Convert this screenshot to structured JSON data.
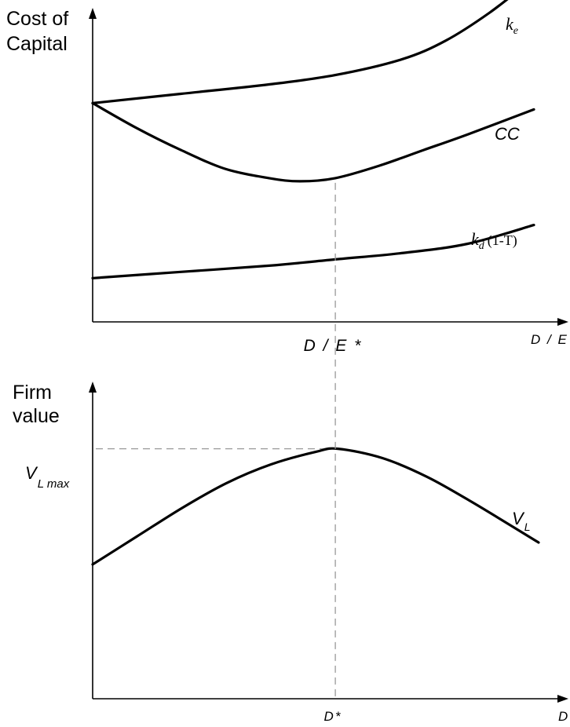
{
  "chart_data": [
    {
      "type": "line",
      "title": "",
      "ylabel_line1": "Cost of",
      "ylabel_line2": "Capital",
      "xlabel": "D / E",
      "xlim": [
        0,
        1
      ],
      "ylim": [
        0,
        1
      ],
      "marker_tick": {
        "x": 0.55,
        "label": "D / E *"
      },
      "series": [
        {
          "name": "ke",
          "label_main": "k",
          "label_sub": "e",
          "x": [
            0,
            0.2,
            0.4,
            0.55,
            0.7,
            0.8,
            0.9,
            1.0
          ],
          "y": [
            0.7,
            0.73,
            0.76,
            0.79,
            0.84,
            0.9,
            0.99,
            1.1
          ]
        },
        {
          "name": "CC",
          "label_main": "CC",
          "x": [
            0,
            0.1,
            0.2,
            0.3,
            0.4,
            0.47,
            0.55,
            0.65,
            0.75,
            0.85,
            1.0
          ],
          "y": [
            0.7,
            0.62,
            0.55,
            0.49,
            0.46,
            0.45,
            0.46,
            0.5,
            0.55,
            0.6,
            0.68
          ]
        },
        {
          "name": "kd(1-T)",
          "label_main": "k",
          "label_sub": "d",
          "label_suffix": "(1-T)",
          "x": [
            0,
            0.2,
            0.4,
            0.55,
            0.7,
            0.85,
            1.0
          ],
          "y": [
            0.14,
            0.16,
            0.18,
            0.2,
            0.22,
            0.25,
            0.31
          ]
        }
      ]
    },
    {
      "type": "line",
      "title": "",
      "ylabel_line1": "Firm",
      "ylabel_line2": "value",
      "xlabel": "D",
      "xlim": [
        0,
        1
      ],
      "ylim": [
        0,
        1
      ],
      "marker_tick": {
        "x": 0.55,
        "label": "D*"
      },
      "max_label": {
        "main": "V",
        "sub": "L max",
        "y": 0.8
      },
      "series": [
        {
          "name": "VL",
          "label_main": "V",
          "label_sub": "L",
          "x": [
            0,
            0.1,
            0.2,
            0.3,
            0.4,
            0.5,
            0.55,
            0.65,
            0.75,
            0.85,
            1.0
          ],
          "y": [
            0.43,
            0.52,
            0.61,
            0.69,
            0.75,
            0.79,
            0.8,
            0.77,
            0.71,
            0.63,
            0.5
          ]
        }
      ]
    }
  ]
}
